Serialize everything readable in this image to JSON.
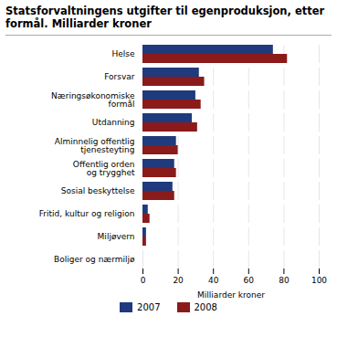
{
  "chart_data": {
    "type": "bar",
    "orientation": "horizontal",
    "title": "Statsforvaltningens utgifter til egenproduksjon, etter\nformål. Milliarder kroner",
    "categories": [
      "Helse",
      "Forsvar",
      "Næringsøkonomiske\nformål",
      "Utdanning",
      "Alminnelig offentlig\ntjenesteyting",
      "Offentlig orden\nog trygghet",
      "Sosial beskyttelse",
      "Fritid, kultur og religion",
      "Miljøvern",
      "Boliger og nærmiljø"
    ],
    "series": [
      {
        "name": "2007",
        "color": "#1F3A7D",
        "values": [
          74,
          32,
          30,
          28,
          19,
          18,
          17,
          3,
          2,
          0
        ]
      },
      {
        "name": "2008",
        "color": "#8B1A1A",
        "values": [
          82,
          35,
          33,
          31,
          20,
          19,
          18,
          4,
          2,
          0
        ]
      }
    ],
    "xlabel": "Milliarder kroner",
    "xlim": [
      0,
      100
    ],
    "xticks": [
      0,
      20,
      40,
      60,
      80,
      100
    ],
    "grid": true,
    "legend": "bottom"
  }
}
